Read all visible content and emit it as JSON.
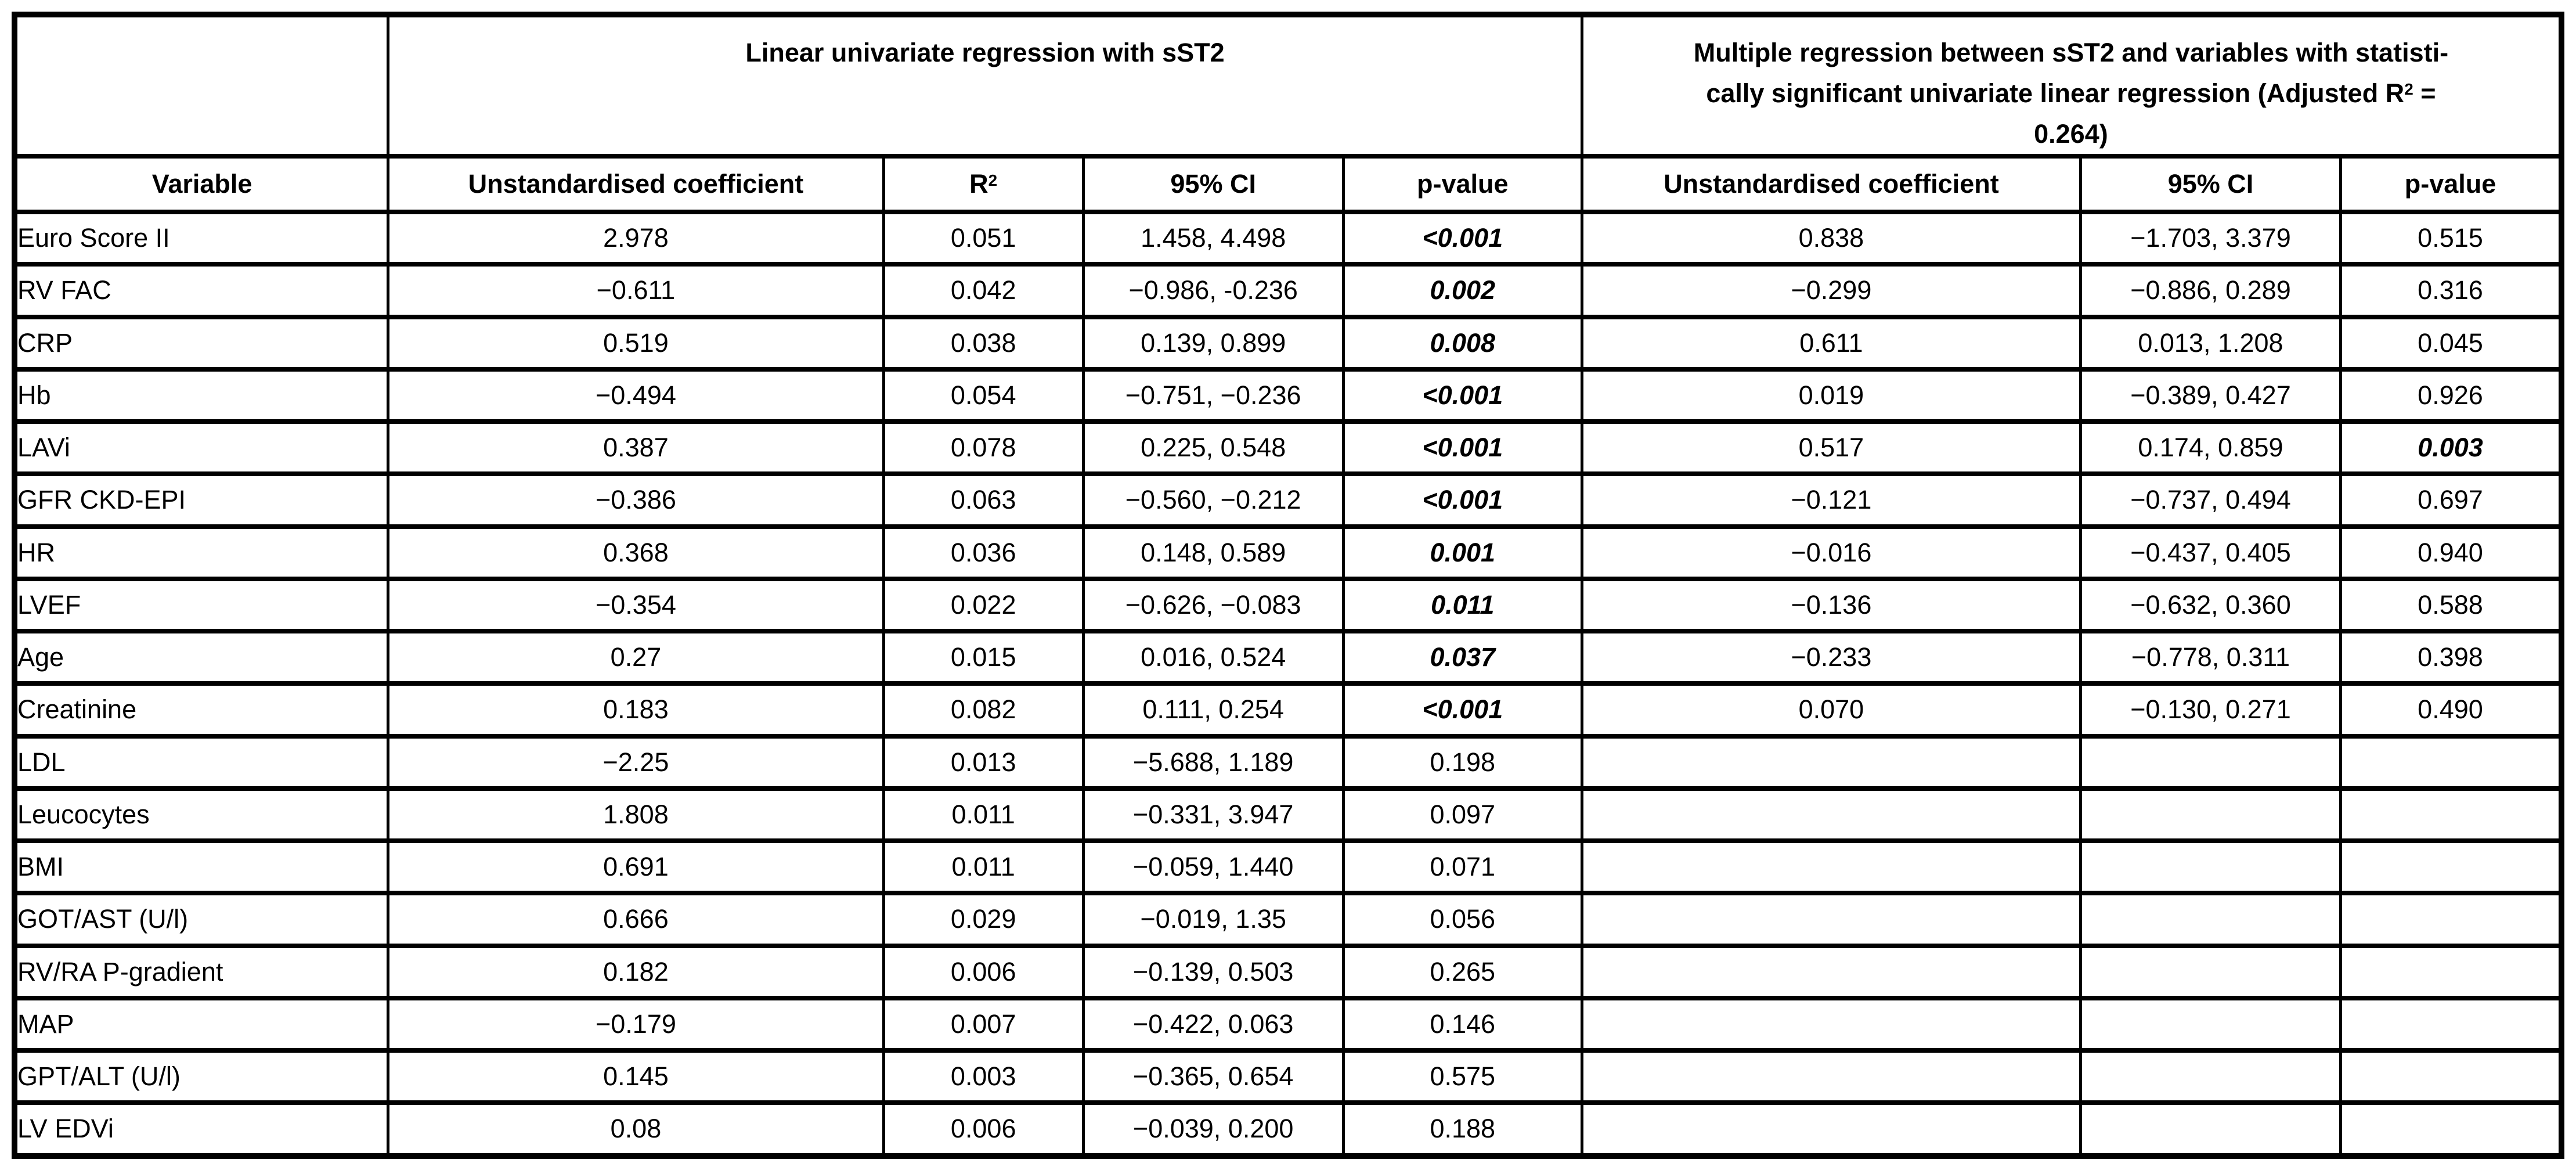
{
  "colors": {
    "border": "#000000",
    "background": "#ffffff",
    "text": "#000000"
  },
  "table": {
    "group_headers": {
      "univariate_title": "Linear univariate regression with sST2",
      "multiple_line1": "Multiple regression between sST2 and variables with statisti-",
      "multiple_line2_pre": "cally significant univariate linear regression (Adjusted R",
      "multiple_line2_sup": "2",
      "multiple_line2_post": " =",
      "multiple_line3": "0.264)"
    },
    "column_headers": {
      "variable": "Variable",
      "uni_coefficient": "Unstandardised coefficient",
      "r2_base": "R",
      "r2_sup": "2",
      "uni_ci": "95% CI",
      "uni_p": "p-value",
      "multi_coefficient": "Unstandardised coefficient",
      "multi_ci": "95% CI",
      "multi_p": "p-value"
    },
    "rows": [
      {
        "variable": "Euro Score II",
        "coef1": "2.978",
        "r2": "0.051",
        "ci1": "1.458, 4.498",
        "p1": "<0.001",
        "p1_sig": true,
        "coef2": "0.838",
        "ci2": "−1.703, 3.379",
        "p2": "0.515",
        "p2_sig": false
      },
      {
        "variable": "RV FAC",
        "coef1": "−0.611",
        "r2": "0.042",
        "ci1": "−0.986, -0.236",
        "p1": "0.002",
        "p1_sig": true,
        "coef2": "−0.299",
        "ci2": "−0.886, 0.289",
        "p2": "0.316",
        "p2_sig": false
      },
      {
        "variable": "CRP",
        "coef1": "0.519",
        "r2": "0.038",
        "ci1": "0.139, 0.899",
        "p1": "0.008",
        "p1_sig": true,
        "coef2": "0.611",
        "ci2": "0.013, 1.208",
        "p2": "0.045",
        "p2_sig": false
      },
      {
        "variable": "Hb",
        "coef1": "−0.494",
        "r2": "0.054",
        "ci1": "−0.751, −0.236",
        "p1": "<0.001",
        "p1_sig": true,
        "coef2": "0.019",
        "ci2": "−0.389, 0.427",
        "p2": "0.926",
        "p2_sig": false
      },
      {
        "variable": "LAVi",
        "coef1": "0.387",
        "r2": "0.078",
        "ci1": "0.225, 0.548",
        "p1": "<0.001",
        "p1_sig": true,
        "coef2": "0.517",
        "ci2": "0.174, 0.859",
        "p2": "0.003",
        "p2_sig": true
      },
      {
        "variable": "GFR CKD-EPI",
        "coef1": "−0.386",
        "r2": "0.063",
        "ci1": "−0.560, −0.212",
        "p1": "<0.001",
        "p1_sig": true,
        "coef2": "−0.121",
        "ci2": "−0.737, 0.494",
        "p2": "0.697",
        "p2_sig": false
      },
      {
        "variable": "HR",
        "coef1": "0.368",
        "r2": "0.036",
        "ci1": "0.148, 0.589",
        "p1": "0.001",
        "p1_sig": true,
        "coef2": "−0.016",
        "ci2": "−0.437, 0.405",
        "p2": "0.940",
        "p2_sig": false
      },
      {
        "variable": "LVEF",
        "coef1": "−0.354",
        "r2": "0.022",
        "ci1": "−0.626, −0.083",
        "p1": "0.011",
        "p1_sig": true,
        "coef2": "−0.136",
        "ci2": "−0.632, 0.360",
        "p2": "0.588",
        "p2_sig": false
      },
      {
        "variable": "Age",
        "coef1": "0.27",
        "r2": "0.015",
        "ci1": "0.016, 0.524",
        "p1": "0.037",
        "p1_sig": true,
        "coef2": "−0.233",
        "ci2": "−0.778, 0.311",
        "p2": "0.398",
        "p2_sig": false
      },
      {
        "variable": "Creatinine",
        "coef1": "0.183",
        "r2": "0.082",
        "ci1": "0.111, 0.254",
        "p1": "<0.001",
        "p1_sig": true,
        "coef2": "0.070",
        "ci2": "−0.130, 0.271",
        "p2": "0.490",
        "p2_sig": false
      },
      {
        "variable": "LDL",
        "coef1": "−2.25",
        "r2": "0.013",
        "ci1": "−5.688, 1.189",
        "p1": "0.198",
        "p1_sig": false,
        "coef2": "",
        "ci2": "",
        "p2": "",
        "p2_sig": false
      },
      {
        "variable": "Leucocytes",
        "coef1": "1.808",
        "r2": "0.011",
        "ci1": "−0.331, 3.947",
        "p1": "0.097",
        "p1_sig": false,
        "coef2": "",
        "ci2": "",
        "p2": "",
        "p2_sig": false
      },
      {
        "variable": "BMI",
        "coef1": "0.691",
        "r2": "0.011",
        "ci1": "−0.059, 1.440",
        "p1": "0.071",
        "p1_sig": false,
        "coef2": "",
        "ci2": "",
        "p2": "",
        "p2_sig": false
      },
      {
        "variable": "GOT/AST (U/l)",
        "coef1": "0.666",
        "r2": "0.029",
        "ci1": "−0.019, 1.35",
        "p1": "0.056",
        "p1_sig": false,
        "coef2": "",
        "ci2": "",
        "p2": "",
        "p2_sig": false
      },
      {
        "variable": "RV/RA P-gradient",
        "coef1": "0.182",
        "r2": "0.006",
        "ci1": "−0.139, 0.503",
        "p1": "0.265",
        "p1_sig": false,
        "coef2": "",
        "ci2": "",
        "p2": "",
        "p2_sig": false
      },
      {
        "variable": "MAP",
        "coef1": "−0.179",
        "r2": "0.007",
        "ci1": "−0.422, 0.063",
        "p1": "0.146",
        "p1_sig": false,
        "coef2": "",
        "ci2": "",
        "p2": "",
        "p2_sig": false
      },
      {
        "variable": "GPT/ALT (U/l)",
        "coef1": "0.145",
        "r2": "0.003",
        "ci1": "−0.365, 0.654",
        "p1": "0.575",
        "p1_sig": false,
        "coef2": "",
        "ci2": "",
        "p2": "",
        "p2_sig": false
      },
      {
        "variable": "LV EDVi",
        "coef1": "0.08",
        "r2": "0.006",
        "ci1": "−0.039, 0.200",
        "p1": "0.188",
        "p1_sig": false,
        "coef2": "",
        "ci2": "",
        "p2": "",
        "p2_sig": false
      }
    ]
  }
}
